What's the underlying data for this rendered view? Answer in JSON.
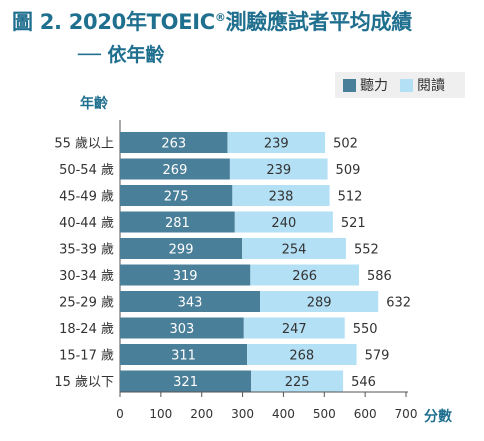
{
  "title_main": "圖 2. 2020年TOEIC",
  "title_sup": "®",
  "title_rest": "測驗應試者平均成績",
  "subtitle": "── 依年齡",
  "chart_data": {
    "type": "bar",
    "orientation": "horizontal",
    "stacked": true,
    "ylabel": "年齡",
    "xlabel": "分數",
    "xlim": [
      0,
      700
    ],
    "xticks": [
      "0",
      "100",
      "200",
      "300",
      "400",
      "500",
      "600",
      "700"
    ],
    "categories": [
      "55 歲以上",
      "50-54 歲",
      "45-49 歲",
      "40-44 歲",
      "35-39 歲",
      "30-34 歲",
      "25-29 歲",
      "18-24 歲",
      "15-17 歲",
      "15 歲以下"
    ],
    "series": [
      {
        "name": "聽力",
        "color": "#4a7f99",
        "values": [
          263,
          269,
          275,
          281,
          299,
          319,
          343,
          303,
          311,
          321
        ]
      },
      {
        "name": "閱讀",
        "color": "#b3e0f5",
        "values": [
          239,
          239,
          238,
          240,
          254,
          266,
          289,
          247,
          268,
          225
        ]
      }
    ],
    "totals": [
      502,
      509,
      512,
      521,
      552,
      586,
      632,
      550,
      579,
      546
    ],
    "legend_position": "top-right"
  }
}
